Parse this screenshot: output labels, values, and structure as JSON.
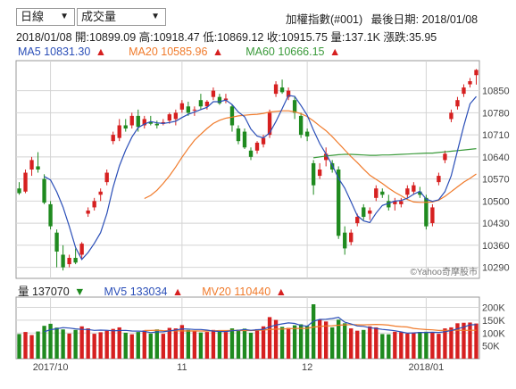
{
  "controls": {
    "period": "日線",
    "indicator": "成交量"
  },
  "header": {
    "title": "加權指數(#001)",
    "last_date_label": "最後日期: 2018/01/08",
    "date": "2018/01/08",
    "open": "開:10899.09",
    "high": "高:10918.47",
    "low": "低:10869.12",
    "close": "收:10915.75",
    "volume": "量:137.1K",
    "change": "漲跌:35.95"
  },
  "ma_legend": {
    "ma5": "MA5 10831.30",
    "ma20": "MA20 10585.96",
    "ma60": "MA60 10666.15",
    "arrow": "▲"
  },
  "vol_legend": {
    "vol": "量 137070",
    "vol_arrow": "▼",
    "mv5": "MV5 133034",
    "mv5_arrow": "▲",
    "mv20": "MV20 110440",
    "mv20_arrow": "▲"
  },
  "watermark": "©Yahoo奇摩股市",
  "colors": {
    "up": "#d62020",
    "down": "#1f8a1f",
    "ma5": "#2b4fb8",
    "ma20": "#f07a2a",
    "ma60": "#3a9a3a",
    "grid": "#d4d4d4"
  },
  "chart_data": [
    {
      "type": "candlestick",
      "title": "",
      "y_ticks": [
        10290,
        10360,
        10430,
        10500,
        10570,
        10640,
        10710,
        10780,
        10850
      ],
      "ylim": [
        10255,
        10945
      ],
      "x_tick_labels": [
        {
          "label": "2017/10",
          "index": 5
        },
        {
          "label": "11",
          "index": 26
        },
        {
          "label": "12",
          "index": 46
        },
        {
          "label": "2018/01",
          "index": 65
        }
      ],
      "candles": [
        {
          "o": 10540,
          "h": 10560,
          "l": 10520,
          "c": 10525
        },
        {
          "o": 10530,
          "h": 10600,
          "l": 10525,
          "c": 10590
        },
        {
          "o": 10600,
          "h": 10640,
          "l": 10580,
          "c": 10630
        },
        {
          "o": 10610,
          "h": 10655,
          "l": 10590,
          "c": 10600
        },
        {
          "o": 10570,
          "h": 10585,
          "l": 10490,
          "c": 10495
        },
        {
          "o": 10490,
          "h": 10500,
          "l": 10410,
          "c": 10420
        },
        {
          "o": 10400,
          "h": 10410,
          "l": 10290,
          "c": 10340
        },
        {
          "o": 10330,
          "h": 10360,
          "l": 10280,
          "c": 10290
        },
        {
          "o": 10300,
          "h": 10330,
          "l": 10290,
          "c": 10320
        },
        {
          "o": 10320,
          "h": 10350,
          "l": 10300,
          "c": 10305
        },
        {
          "o": 10330,
          "h": 10370,
          "l": 10315,
          "c": 10365
        },
        {
          "o": 10460,
          "h": 10480,
          "l": 10450,
          "c": 10470
        },
        {
          "o": 10480,
          "h": 10510,
          "l": 10470,
          "c": 10500
        },
        {
          "o": 10520,
          "h": 10540,
          "l": 10500,
          "c": 10530
        },
        {
          "o": 10560,
          "h": 10600,
          "l": 10550,
          "c": 10590
        },
        {
          "o": 10690,
          "h": 10720,
          "l": 10680,
          "c": 10710
        },
        {
          "o": 10700,
          "h": 10760,
          "l": 10690,
          "c": 10740
        },
        {
          "o": 10740,
          "h": 10760,
          "l": 10720,
          "c": 10730
        },
        {
          "o": 10740,
          "h": 10780,
          "l": 10730,
          "c": 10770
        },
        {
          "o": 10770,
          "h": 10790,
          "l": 10720,
          "c": 10735
        },
        {
          "o": 10740,
          "h": 10770,
          "l": 10730,
          "c": 10760
        },
        {
          "o": 10750,
          "h": 10770,
          "l": 10740,
          "c": 10745
        },
        {
          "o": 10745,
          "h": 10755,
          "l": 10730,
          "c": 10740
        },
        {
          "o": 10745,
          "h": 10760,
          "l": 10740,
          "c": 10750
        },
        {
          "o": 10755,
          "h": 10780,
          "l": 10745,
          "c": 10775
        },
        {
          "o": 10760,
          "h": 10790,
          "l": 10740,
          "c": 10780
        },
        {
          "o": 10790,
          "h": 10820,
          "l": 10780,
          "c": 10810
        },
        {
          "o": 10800,
          "h": 10815,
          "l": 10770,
          "c": 10780
        },
        {
          "o": 10790,
          "h": 10800,
          "l": 10770,
          "c": 10790
        },
        {
          "o": 10820,
          "h": 10840,
          "l": 10790,
          "c": 10800
        },
        {
          "o": 10800,
          "h": 10820,
          "l": 10790,
          "c": 10815
        },
        {
          "o": 10830,
          "h": 10860,
          "l": 10820,
          "c": 10850
        },
        {
          "o": 10830,
          "h": 10840,
          "l": 10805,
          "c": 10810
        },
        {
          "o": 10820,
          "h": 10840,
          "l": 10810,
          "c": 10825
        },
        {
          "o": 10800,
          "h": 10805,
          "l": 10720,
          "c": 10740
        },
        {
          "o": 10730,
          "h": 10740,
          "l": 10680,
          "c": 10690
        },
        {
          "o": 10720,
          "h": 10730,
          "l": 10665,
          "c": 10670
        },
        {
          "o": 10660,
          "h": 10670,
          "l": 10630,
          "c": 10640
        },
        {
          "o": 10660,
          "h": 10690,
          "l": 10650,
          "c": 10685
        },
        {
          "o": 10680,
          "h": 10710,
          "l": 10670,
          "c": 10700
        },
        {
          "o": 10710,
          "h": 10790,
          "l": 10700,
          "c": 10780
        },
        {
          "o": 10840,
          "h": 10880,
          "l": 10830,
          "c": 10870
        },
        {
          "o": 10860,
          "h": 10885,
          "l": 10840,
          "c": 10845
        },
        {
          "o": 10830,
          "h": 10860,
          "l": 10820,
          "c": 10850
        },
        {
          "o": 10820,
          "h": 10830,
          "l": 10760,
          "c": 10780
        },
        {
          "o": 10770,
          "h": 10780,
          "l": 10700,
          "c": 10710
        },
        {
          "o": 10720,
          "h": 10730,
          "l": 10690,
          "c": 10705
        },
        {
          "o": 10620,
          "h": 10630,
          "l": 10520,
          "c": 10550
        },
        {
          "o": 10580,
          "h": 10620,
          "l": 10570,
          "c": 10600
        },
        {
          "o": 10630,
          "h": 10670,
          "l": 10610,
          "c": 10650
        },
        {
          "o": 10620,
          "h": 10630,
          "l": 10590,
          "c": 10600
        },
        {
          "o": 10600,
          "h": 10610,
          "l": 10380,
          "c": 10390
        },
        {
          "o": 10400,
          "h": 10420,
          "l": 10330,
          "c": 10350
        },
        {
          "o": 10370,
          "h": 10410,
          "l": 10360,
          "c": 10400
        },
        {
          "o": 10430,
          "h": 10460,
          "l": 10420,
          "c": 10450
        },
        {
          "o": 10480,
          "h": 10490,
          "l": 10440,
          "c": 10450
        },
        {
          "o": 10460,
          "h": 10480,
          "l": 10440,
          "c": 10470
        },
        {
          "o": 10510,
          "h": 10550,
          "l": 10500,
          "c": 10540
        },
        {
          "o": 10530,
          "h": 10540,
          "l": 10510,
          "c": 10520
        },
        {
          "o": 10500,
          "h": 10520,
          "l": 10470,
          "c": 10480
        },
        {
          "o": 10490,
          "h": 10510,
          "l": 10470,
          "c": 10500
        },
        {
          "o": 10490,
          "h": 10510,
          "l": 10480,
          "c": 10500
        },
        {
          "o": 10520,
          "h": 10550,
          "l": 10510,
          "c": 10540
        },
        {
          "o": 10530,
          "h": 10560,
          "l": 10520,
          "c": 10550
        },
        {
          "o": 10530,
          "h": 10545,
          "l": 10510,
          "c": 10520
        },
        {
          "o": 10510,
          "h": 10520,
          "l": 10410,
          "c": 10420
        },
        {
          "o": 10430,
          "h": 10490,
          "l": 10420,
          "c": 10480
        },
        {
          "o": 10560,
          "h": 10590,
          "l": 10550,
          "c": 10580
        },
        {
          "o": 10630,
          "h": 10660,
          "l": 10620,
          "c": 10650
        },
        {
          "o": 10760,
          "h": 10790,
          "l": 10750,
          "c": 10780
        },
        {
          "o": 10800,
          "h": 10830,
          "l": 10790,
          "c": 10820
        },
        {
          "o": 10840,
          "h": 10870,
          "l": 10830,
          "c": 10860
        },
        {
          "o": 10870,
          "h": 10890,
          "l": 10860,
          "c": 10880
        },
        {
          "o": 10899.09,
          "h": 10918.47,
          "l": 10869.12,
          "c": 10915.75
        }
      ],
      "ma5": [
        null,
        null,
        null,
        null,
        10578,
        10567,
        10529,
        10481,
        10420,
        10353,
        10315,
        10337,
        10366,
        10400,
        10460,
        10544,
        10611,
        10661,
        10703,
        10733,
        10744,
        10752,
        10748,
        10746,
        10749,
        10753,
        10765,
        10775,
        10782,
        10790,
        10797,
        10815,
        10815,
        10820,
        10806,
        10782,
        10767,
        10728,
        10706,
        10700,
        10716,
        10752,
        10793,
        10835,
        10832,
        10803,
        10772,
        10725,
        10682,
        10649,
        10614,
        10572,
        10541,
        10498,
        10454,
        10437,
        10432,
        10462,
        10486,
        10493,
        10500,
        10502,
        10509,
        10522,
        10531,
        10506,
        10499,
        10504,
        10530,
        10580,
        10660,
        10738,
        10808,
        10831.3
      ],
      "ma20": [
        null,
        null,
        null,
        null,
        null,
        null,
        null,
        null,
        null,
        null,
        null,
        null,
        null,
        null,
        null,
        null,
        null,
        null,
        null,
        null,
        10508,
        10518,
        10534,
        10556,
        10580,
        10608,
        10639,
        10667,
        10693,
        10712,
        10730,
        10746,
        10756,
        10763,
        10766,
        10770,
        10772,
        10774,
        10775,
        10778,
        10782,
        10784,
        10786,
        10786,
        10783,
        10777,
        10768,
        10754,
        10738,
        10723,
        10704,
        10683,
        10662,
        10641,
        10622,
        10601,
        10582,
        10569,
        10556,
        10541,
        10528,
        10517,
        10505,
        10497,
        10496,
        10496,
        10497,
        10503,
        10515,
        10530,
        10545,
        10560,
        10572,
        10585.96
      ],
      "ma60": [
        null,
        null,
        null,
        null,
        null,
        null,
        null,
        null,
        null,
        null,
        null,
        null,
        null,
        null,
        null,
        null,
        null,
        null,
        null,
        null,
        null,
        null,
        null,
        null,
        null,
        null,
        null,
        null,
        null,
        null,
        null,
        null,
        null,
        null,
        null,
        null,
        null,
        null,
        null,
        null,
        null,
        null,
        null,
        null,
        null,
        null,
        null,
        10637,
        10640,
        10643,
        10645,
        10647,
        10648,
        10648,
        10647,
        10646,
        10645,
        10645,
        10646,
        10646,
        10647,
        10648,
        10649,
        10650,
        10651,
        10652,
        10652,
        10654,
        10656,
        10658,
        10660,
        10662,
        10664,
        10666.15
      ]
    },
    {
      "type": "bar",
      "title": "",
      "y_ticks": [
        50000,
        100000,
        150000,
        200000
      ],
      "y_tick_labels": [
        "50K",
        "100K",
        "150K",
        "200K"
      ],
      "ylim": [
        0,
        240000
      ],
      "volumes": [
        96000,
        104000,
        92000,
        106000,
        128000,
        136000,
        121000,
        114000,
        98000,
        112000,
        126000,
        118000,
        97000,
        103000,
        109000,
        116000,
        122000,
        101000,
        95000,
        104000,
        110000,
        98000,
        114000,
        97000,
        120000,
        118000,
        131000,
        112000,
        107000,
        102000,
        104000,
        112000,
        106000,
        104000,
        118000,
        113000,
        117000,
        101000,
        115000,
        126000,
        162000,
        151000,
        124000,
        120000,
        130000,
        134000,
        127000,
        212000,
        153000,
        145000,
        122000,
        152000,
        138000,
        118000,
        109000,
        112000,
        126000,
        122000,
        96000,
        95000,
        105000,
        103000,
        98000,
        102000,
        104000,
        105000,
        104000,
        97000,
        118000,
        122000,
        138000,
        140000,
        141000,
        137070
      ],
      "mv5": [
        null,
        null,
        null,
        null,
        105200,
        113200,
        116600,
        121000,
        119400,
        116200,
        114200,
        113600,
        110200,
        111200,
        110600,
        108600,
        109400,
        110200,
        107800,
        107600,
        106400,
        101600,
        104200,
        104600,
        108200,
        111400,
        116000,
        115600,
        113600,
        113800,
        111200,
        107400,
        106200,
        105600,
        108800,
        110600,
        113600,
        110600,
        112800,
        114400,
        124200,
        131000,
        135600,
        139600,
        137400,
        129400,
        126600,
        146200,
        153200,
        153800,
        156600,
        161000,
        142400,
        135400,
        127800,
        125800,
        120600,
        117400,
        114200,
        111800,
        108800,
        104200,
        99400,
        100600,
        102400,
        102400,
        102800,
        102200,
        105200,
        109200,
        116200,
        123200,
        131800,
        133034
      ],
      "mv20": [
        null,
        null,
        null,
        null,
        null,
        null,
        null,
        null,
        null,
        null,
        null,
        null,
        null,
        null,
        null,
        null,
        null,
        null,
        null,
        null,
        109900,
        110000,
        110800,
        109300,
        108900,
        108000,
        108200,
        107800,
        108200,
        107800,
        107600,
        108400,
        109400,
        109500,
        109900,
        109600,
        109400,
        109400,
        110400,
        111500,
        113400,
        115000,
        115400,
        116800,
        117400,
        117800,
        118300,
        123100,
        125400,
        127500,
        128400,
        130400,
        132000,
        132700,
        132300,
        131700,
        132400,
        133400,
        132400,
        130900,
        127100,
        124700,
        123400,
        117900,
        115400,
        113400,
        112200,
        110000,
        110100,
        110500,
        110900,
        110400,
        110600,
        110440
      ]
    }
  ]
}
